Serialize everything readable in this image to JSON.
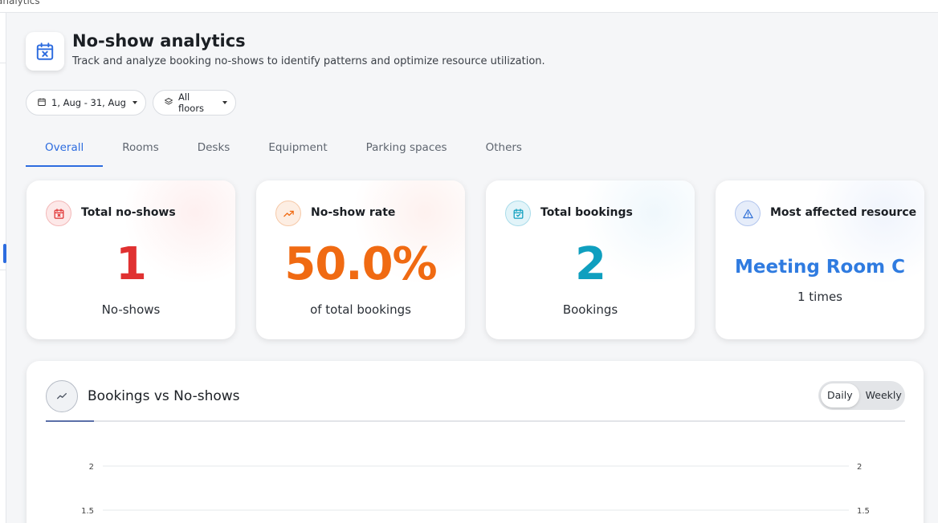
{
  "topbar": {
    "title": "analytics"
  },
  "header": {
    "title": "No-show analytics",
    "subtitle": "Track and analyze booking no-shows to identify patterns and optimize resource utilization.",
    "icon": "calendar-x-icon",
    "accent": "#2d6cdf"
  },
  "filters": {
    "date_range": "1, Aug - 31, Aug",
    "floor": "All floors"
  },
  "tabs": [
    {
      "label": "Overall",
      "active": true
    },
    {
      "label": "Rooms",
      "active": false
    },
    {
      "label": "Desks",
      "active": false
    },
    {
      "label": "Equipment",
      "active": false
    },
    {
      "label": "Parking spaces",
      "active": false
    },
    {
      "label": "Others",
      "active": false
    }
  ],
  "cards": {
    "total_noshows": {
      "title": "Total no-shows",
      "value": "1",
      "caption": "No-shows",
      "color": "#e03131",
      "icon": "calendar-x-icon"
    },
    "noshow_rate": {
      "title": "No-show rate",
      "value": "50.0%",
      "caption": "of total bookings",
      "color": "#f06a12",
      "icon": "trending-up-icon"
    },
    "total_bookings": {
      "title": "Total bookings",
      "value": "2",
      "caption": "Bookings",
      "color": "#0f9fbf",
      "icon": "calendar-check-icon"
    },
    "most_affected": {
      "title": "Most affected resource",
      "value": "Meeting Room C",
      "caption": "1 times",
      "color": "#2f7be0",
      "icon": "warning-triangle-icon"
    }
  },
  "chart_panel": {
    "title": "Bookings vs No-shows",
    "icon": "trend-line-icon",
    "toggle": {
      "daily": "Daily",
      "weekly": "Weekly",
      "selected": "Daily"
    }
  },
  "chart_data": {
    "type": "line",
    "title": "Bookings vs No-shows",
    "y_ticks_left": [
      "2",
      "1.5"
    ],
    "y_ticks_right": [
      "2",
      "1.5"
    ],
    "ylim": [
      0,
      2
    ],
    "grid": true
  }
}
